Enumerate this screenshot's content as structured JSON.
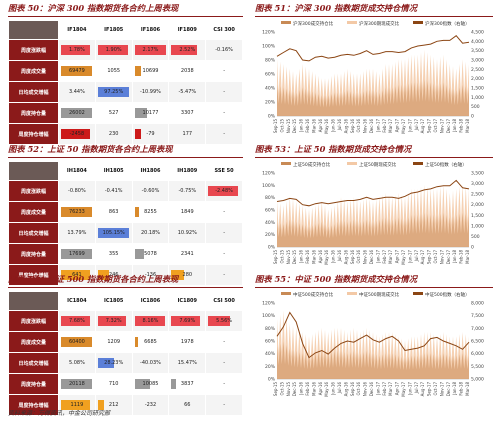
{
  "source": "资料来源：万得资讯，中金公司研究部",
  "tables": [
    {
      "title": "图表 50：沪深 300 指数期货各合约上周表现",
      "headers": [
        "IF1804",
        "IF1805",
        "IF1806",
        "IF1809",
        "CSI 300"
      ],
      "row_labels": [
        "周度涨跌幅",
        "周度成交量",
        "日均成交增幅",
        "周度持仓量",
        "周度持仓增幅"
      ],
      "rows": [
        [
          {
            "t": "1.78%",
            "c": "#e8474f",
            "f": 0.9
          },
          {
            "t": "1.90%",
            "c": "#e8474f",
            "f": 0.95
          },
          {
            "t": "2.17%",
            "c": "#e8474f",
            "f": 1.0
          },
          {
            "t": "2.52%",
            "c": "#e8474f",
            "f": 0.8
          },
          {
            "t": "-0.16%",
            "c": "",
            "f": 0
          }
        ],
        [
          {
            "t": "69479",
            "c": "#d98a2b",
            "f": 0.98
          },
          {
            "t": "1055",
            "c": "",
            "f": 0
          },
          {
            "t": "10699",
            "c": "#d98a2b",
            "f": 0.2
          },
          {
            "t": "2038",
            "c": "",
            "f": 0
          },
          {
            "t": "-",
            "c": "",
            "f": 0
          }
        ],
        [
          {
            "t": "3.44%",
            "c": "",
            "f": 0
          },
          {
            "t": "97.25%",
            "c": "#5b7fd8",
            "f": 0.97
          },
          {
            "t": "-10.99%",
            "c": "",
            "f": 0
          },
          {
            "t": "-5.47%",
            "c": "",
            "f": 0
          },
          {
            "t": "-",
            "c": "",
            "f": 0
          }
        ],
        [
          {
            "t": "26002",
            "c": "#999999",
            "f": 0.98
          },
          {
            "t": "527",
            "c": "",
            "f": 0
          },
          {
            "t": "10177",
            "c": "#999999",
            "f": 0.4
          },
          {
            "t": "3307",
            "c": "",
            "f": 0
          },
          {
            "t": "-",
            "c": "",
            "f": 0
          }
        ],
        [
          {
            "t": "-2458",
            "c": "#cc1a1a",
            "f": 0.9
          },
          {
            "t": "230",
            "c": "",
            "f": 0
          },
          {
            "t": "-79",
            "c": "#cc1a1a",
            "f": 0.2
          },
          {
            "t": "177",
            "c": "",
            "f": 0
          },
          {
            "t": "-",
            "c": "",
            "f": 0
          }
        ]
      ]
    },
    {
      "title": "图表 52：上证 50 指数期货各合约上周表现",
      "headers": [
        "IH1804",
        "IH1805",
        "IH1806",
        "IH1809",
        "SSE 50"
      ],
      "row_labels": [
        "周度涨跌幅",
        "周度成交量",
        "日均成交增幅",
        "周度持仓量",
        "周度持仓增幅"
      ],
      "rows": [
        [
          {
            "t": "-0.80%",
            "c": "",
            "f": 0
          },
          {
            "t": "-0.41%",
            "c": "",
            "f": 0
          },
          {
            "t": "-0.60%",
            "c": "",
            "f": 0
          },
          {
            "t": "-0.75%",
            "c": "",
            "f": 0
          },
          {
            "t": "-2.48%",
            "c": "#e8474f",
            "f": 0.95
          }
        ],
        [
          {
            "t": "76233",
            "c": "#d98a2b",
            "f": 0.98
          },
          {
            "t": "863",
            "c": "",
            "f": 0
          },
          {
            "t": "8255",
            "c": "#d98a2b",
            "f": 0.15
          },
          {
            "t": "1849",
            "c": "",
            "f": 0
          },
          {
            "t": "-",
            "c": "",
            "f": 0
          }
        ],
        [
          {
            "t": "13.79%",
            "c": "",
            "f": 0
          },
          {
            "t": "105.15%",
            "c": "#5b7fd8",
            "f": 0.97
          },
          {
            "t": "20.18%",
            "c": "",
            "f": 0
          },
          {
            "t": "10.92%",
            "c": "",
            "f": 0
          },
          {
            "t": "-",
            "c": "",
            "f": 0
          }
        ],
        [
          {
            "t": "17699",
            "c": "#999999",
            "f": 0.98
          },
          {
            "t": "355",
            "c": "",
            "f": 0
          },
          {
            "t": "5078",
            "c": "#999999",
            "f": 0.3
          },
          {
            "t": "2341",
            "c": "",
            "f": 0
          },
          {
            "t": "-",
            "c": "",
            "f": 0
          }
        ],
        [
          {
            "t": "641",
            "c": "#f0a020",
            "f": 0.9
          },
          {
            "t": "246",
            "c": "#f0a020",
            "f": 0.35
          },
          {
            "t": "-136",
            "c": "",
            "f": 0
          },
          {
            "t": "280",
            "c": "#f0a020",
            "f": 0.4
          },
          {
            "t": "-",
            "c": "",
            "f": 0
          }
        ]
      ]
    },
    {
      "title": "图表 54：中证 500 指数期货各合约上周表现",
      "headers": [
        "IC1804",
        "IC1805",
        "IC1806",
        "IC1809",
        "CSI 500"
      ],
      "row_labels": [
        "周度涨跌幅",
        "周度成交量",
        "日均成交增幅",
        "周度持仓量",
        "周度持仓增幅"
      ],
      "rows": [
        [
          {
            "t": "7.68%",
            "c": "#e8474f",
            "f": 0.9
          },
          {
            "t": "7.32%",
            "c": "#e8474f",
            "f": 0.88
          },
          {
            "t": "8.16%",
            "c": "#e8474f",
            "f": 0.95
          },
          {
            "t": "7.69%",
            "c": "#e8474f",
            "f": 0.9
          },
          {
            "t": "5.56%",
            "c": "#e8474f",
            "f": 0.7
          }
        ],
        [
          {
            "t": "60400",
            "c": "#d98a2b",
            "f": 0.98
          },
          {
            "t": "1209",
            "c": "",
            "f": 0
          },
          {
            "t": "6685",
            "c": "#d98a2b",
            "f": 0.12
          },
          {
            "t": "1978",
            "c": "",
            "f": 0
          },
          {
            "t": "-",
            "c": "",
            "f": 0
          }
        ],
        [
          {
            "t": "5.08%",
            "c": "",
            "f": 0
          },
          {
            "t": "28.23%",
            "c": "#5b7fd8",
            "f": 0.5
          },
          {
            "t": "-40.03%",
            "c": "",
            "f": 0
          },
          {
            "t": "15.47%",
            "c": "",
            "f": 0
          },
          {
            "t": "-",
            "c": "",
            "f": 0
          }
        ],
        [
          {
            "t": "20118",
            "c": "#999999",
            "f": 0.98
          },
          {
            "t": "710",
            "c": "",
            "f": 0
          },
          {
            "t": "10085",
            "c": "#999999",
            "f": 0.5
          },
          {
            "t": "3837",
            "c": "#999999",
            "f": 0.15
          },
          {
            "t": "-",
            "c": "",
            "f": 0
          }
        ],
        [
          {
            "t": "1119",
            "c": "#f0a020",
            "f": 0.9
          },
          {
            "t": "212",
            "c": "#f0a020",
            "f": 0.2
          },
          {
            "t": "-232",
            "c": "",
            "f": 0
          },
          {
            "t": "66",
            "c": "",
            "f": 0
          },
          {
            "t": "-",
            "c": "",
            "f": 0
          }
        ]
      ]
    }
  ],
  "chart_data": [
    {
      "type": "line",
      "title": "图表 51：沪深 300 指数期货成交持仓情况",
      "series": [
        {
          "name": "沪深300成交持仓比",
          "color": "#c88a55"
        },
        {
          "name": "沪深300期现成交比",
          "color": "#f3c9a6"
        },
        {
          "name": "沪深300指数（右轴）",
          "color": "#8b4513"
        }
      ],
      "ylim_left": [
        0,
        120
      ],
      "yticks_left": [
        "0%",
        "20%",
        "40%",
        "60%",
        "80%",
        "100%",
        "120%"
      ],
      "ylim_right": [
        0,
        4500
      ],
      "yticks_right": [
        "0",
        "500",
        "1,000",
        "1,500",
        "2,000",
        "2,500",
        "3,000",
        "3,500",
        "4,000",
        "4,500"
      ],
      "x": [
        "Sep-15",
        "Oct-15",
        "Nov-15",
        "Dec-15",
        "Jan-16",
        "Feb-16",
        "Mar-16",
        "Apr-16",
        "May-16",
        "Jun-16",
        "Jul-16",
        "Aug-16",
        "Sep-16",
        "Oct-16",
        "Nov-16",
        "Dec-16",
        "Jan-17",
        "Feb-17",
        "Mar-17",
        "Apr-17",
        "May-17",
        "Jun-17",
        "Jul-17",
        "Aug-17",
        "Sep-17",
        "Oct-17",
        "Nov-17",
        "Dec-17",
        "Jan-18",
        "Feb-18",
        "Mar-18"
      ],
      "ratio": [
        60,
        55,
        50,
        45,
        55,
        50,
        45,
        40,
        40,
        45,
        45,
        50,
        45,
        45,
        50,
        50,
        45,
        55,
        55,
        60,
        60,
        65,
        65,
        70,
        65,
        60,
        65,
        55,
        50,
        60,
        55
      ],
      "index": [
        3200,
        3400,
        3600,
        3500,
        3000,
        2950,
        3150,
        3200,
        3100,
        3150,
        3250,
        3300,
        3250,
        3350,
        3500,
        3300,
        3350,
        3450,
        3450,
        3400,
        3450,
        3650,
        3750,
        3800,
        3850,
        4000,
        4050,
        4050,
        4300,
        3900,
        3950
      ]
    },
    {
      "type": "line",
      "title": "图表 53：上证 50 指数期货成交持仓情况",
      "series": [
        {
          "name": "上证50成交持仓比",
          "color": "#c88a55"
        },
        {
          "name": "上证50期现成交比",
          "color": "#f3c9a6"
        },
        {
          "name": "上证50指数（右轴）",
          "color": "#8b4513"
        }
      ],
      "ylim_left": [
        0,
        120
      ],
      "yticks_left": [
        "0%",
        "20%",
        "40%",
        "60%",
        "80%",
        "100%",
        "120%"
      ],
      "ylim_right": [
        0,
        3500
      ],
      "yticks_right": [
        "0",
        "500",
        "1,000",
        "1,500",
        "2,000",
        "2,500",
        "3,000",
        "3,500"
      ],
      "x": [
        "Sep-15",
        "Oct-15",
        "Nov-15",
        "Dec-15",
        "Jan-16",
        "Feb-16",
        "Mar-16",
        "Apr-16",
        "May-16",
        "Jun-16",
        "Jul-16",
        "Aug-16",
        "Sep-16",
        "Oct-16",
        "Nov-16",
        "Dec-16",
        "Jan-17",
        "Feb-17",
        "Mar-17",
        "Apr-17",
        "May-17",
        "Jun-17",
        "Jul-17",
        "Aug-17",
        "Sep-17",
        "Oct-17",
        "Nov-17",
        "Dec-17",
        "Jan-18",
        "Feb-18",
        "Mar-18"
      ],
      "ratio": [
        55,
        50,
        60,
        55,
        50,
        45,
        50,
        55,
        45,
        50,
        60,
        55,
        60,
        55,
        60,
        55,
        60,
        65,
        60,
        65,
        60,
        70,
        70,
        75,
        70,
        70,
        75,
        65,
        70,
        75,
        70
      ],
      "index": [
        2150,
        2200,
        2300,
        2250,
        2000,
        1950,
        2050,
        2100,
        2050,
        2100,
        2150,
        2200,
        2200,
        2250,
        2350,
        2250,
        2300,
        2350,
        2350,
        2300,
        2400,
        2550,
        2600,
        2700,
        2750,
        2850,
        2900,
        2900,
        3150,
        2800,
        2750
      ]
    },
    {
      "type": "line",
      "title": "图表 55：中证 500 指数期货成交持仓情况",
      "series": [
        {
          "name": "中证500成交持仓比",
          "color": "#c88a55"
        },
        {
          "name": "中证500期现成交比",
          "color": "#f3c9a6"
        },
        {
          "name": "中证500指数（右轴）",
          "color": "#8b4513"
        }
      ],
      "ylim_left": [
        0,
        120
      ],
      "yticks_left": [
        "0%",
        "20%",
        "40%",
        "60%",
        "80%",
        "100%",
        "120%"
      ],
      "ylim_right": [
        4800,
        8000
      ],
      "yticks_right": [
        "5,000",
        "5,500",
        "6,000",
        "6,500",
        "7,000",
        "7,500",
        "8,000"
      ],
      "x": [
        "Sep-15",
        "Oct-15",
        "Nov-15",
        "Dec-15",
        "Jan-16",
        "Feb-16",
        "Mar-16",
        "Apr-16",
        "May-16",
        "Jun-16",
        "Jul-16",
        "Aug-16",
        "Sep-16",
        "Oct-16",
        "Nov-16",
        "Dec-16",
        "Jan-17",
        "Feb-17",
        "Mar-17",
        "Apr-17",
        "May-17",
        "Jun-17",
        "Jul-17",
        "Aug-17",
        "Sep-17",
        "Oct-17",
        "Nov-17",
        "Dec-17",
        "Jan-18",
        "Feb-18",
        "Mar-18"
      ],
      "ratio": [
        70,
        80,
        65,
        60,
        55,
        50,
        55,
        60,
        55,
        60,
        60,
        55,
        60,
        55,
        60,
        55,
        50,
        55,
        55,
        50,
        45,
        50,
        50,
        55,
        55,
        50,
        55,
        50,
        50,
        55,
        50
      ],
      "index": [
        6600,
        7000,
        7600,
        7200,
        6300,
        5700,
        5900,
        6000,
        5850,
        6100,
        6300,
        6400,
        6350,
        6500,
        6650,
        6450,
        6350,
        6500,
        6600,
        6400,
        6000,
        6050,
        6100,
        6200,
        6500,
        6550,
        6400,
        6300,
        6200,
        6050,
        6350
      ]
    }
  ]
}
